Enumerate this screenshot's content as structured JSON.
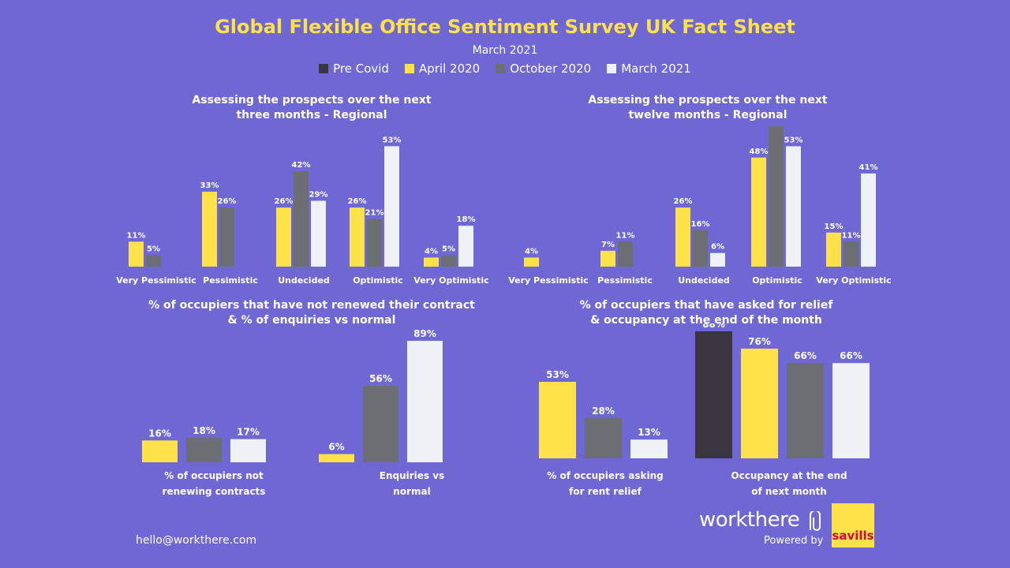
{
  "header": {
    "title": "Global Flexible Office Sentiment Survey UK Fact Sheet",
    "subtitle": "March 2021"
  },
  "legend": [
    {
      "label": "Pre Covid",
      "color": "#3a3640"
    },
    {
      "label": "April 2020",
      "color": "#ffe14a"
    },
    {
      "label": "October 2020",
      "color": "#6b6e72"
    },
    {
      "label": "March 2021",
      "color": "#eef1f6"
    }
  ],
  "chart_data": [
    {
      "type": "bar",
      "title": "Assessing the prospects over the next three months - Regional",
      "categories": [
        "Very Pessimistic",
        "Pessimistic",
        "Undecided",
        "Optimistic",
        "Very Optimistic"
      ],
      "series": [
        {
          "name": "April 2020",
          "values": [
            11,
            33,
            26,
            26,
            4
          ]
        },
        {
          "name": "October 2020",
          "values": [
            5,
            26,
            42,
            21,
            5
          ]
        },
        {
          "name": "March 2021",
          "values": [
            null,
            null,
            29,
            53,
            18
          ]
        }
      ],
      "value_suffix": "%"
    },
    {
      "type": "bar",
      "title": "Assessing the prospects over the next twelve months - Regional",
      "categories": [
        "Very Pessimistic",
        "Pessimistic",
        "Undecided",
        "Optimistic",
        "Very Optimistic"
      ],
      "series": [
        {
          "name": "April 2020",
          "values": [
            4,
            7,
            26,
            48,
            15
          ]
        },
        {
          "name": "October 2020",
          "values": [
            null,
            11,
            16,
            63,
            11
          ]
        },
        {
          "name": "March 2021",
          "values": [
            null,
            null,
            6,
            53,
            41
          ]
        }
      ],
      "value_suffix": "%"
    },
    {
      "type": "bar",
      "title": "% of occupiers that have not renewed their contract & % of enquiries vs normal",
      "categories": [
        "% of occupiers not renewing contracts",
        "Enquiries vs normal"
      ],
      "series": [
        {
          "name": "April 2020",
          "values": [
            16,
            6
          ]
        },
        {
          "name": "October 2020",
          "values": [
            18,
            56
          ]
        },
        {
          "name": "March 2021",
          "values": [
            17,
            89
          ]
        }
      ],
      "value_suffix": "%"
    },
    {
      "type": "bar",
      "title": "% of occupiers that have asked for relief & occupancy at the end of the month",
      "categories": [
        "% of occupiers asking for rent relief",
        "Occupancy at the end of next month"
      ],
      "series": [
        {
          "name": "Pre Covid",
          "values": [
            null,
            88
          ]
        },
        {
          "name": "April 2020",
          "values": [
            53,
            76
          ]
        },
        {
          "name": "October 2020",
          "values": [
            28,
            66
          ]
        },
        {
          "name": "March 2021",
          "values": [
            13,
            66
          ]
        }
      ],
      "value_suffix": "%"
    }
  ],
  "chart_titles": {
    "c1": [
      "Assessing the prospects over the next",
      "three months - Regional"
    ],
    "c2": [
      "Assessing the prospects over the next",
      "twelve months - Regional"
    ],
    "c3": [
      "% of occupiers that have not renewed their contract",
      "& % of enquiries vs normal"
    ],
    "c4": [
      "% of occupiers that have asked for relief",
      "& occupancy at the end of the month"
    ]
  },
  "category_labels": {
    "c3": [
      [
        "% of occupiers not",
        "renewing contracts"
      ],
      [
        "Enquiries vs",
        "normal"
      ]
    ],
    "c4": [
      [
        "% of occupiers asking",
        "for rent relief"
      ],
      [
        "Occupancy at the end",
        "of next month"
      ]
    ]
  },
  "footer": {
    "email": "hello@workthere.com",
    "brand": "workthere",
    "powered_by": "Powered by",
    "partner": "savills"
  }
}
